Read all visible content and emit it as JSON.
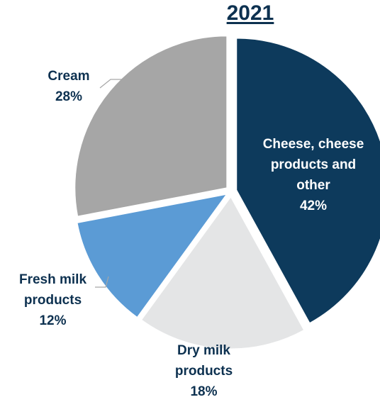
{
  "chart_data": {
    "type": "pie",
    "title": "2021",
    "slices": [
      {
        "label": "Cheese, cheese products and other",
        "value": 42,
        "value_label": "42%",
        "color": "#0d3a5c"
      },
      {
        "label": "Dry milk products",
        "value": 18,
        "value_label": "18%",
        "color": "#e4e5e6"
      },
      {
        "label": "Fresh milk products",
        "value": 12,
        "value_label": "12%",
        "color": "#5b9bd5"
      },
      {
        "label": "Cream",
        "value": 28,
        "value_label": "28%",
        "color": "#a6a6a6"
      }
    ],
    "label_lines": {
      "cheese": [
        "Cheese, cheese",
        "products and",
        "other"
      ],
      "dry": [
        "Dry milk",
        "products"
      ],
      "fresh": [
        "Fresh milk",
        "products"
      ],
      "cream": [
        "Cream"
      ]
    },
    "legend": "none",
    "label_color": "#0d3150"
  }
}
